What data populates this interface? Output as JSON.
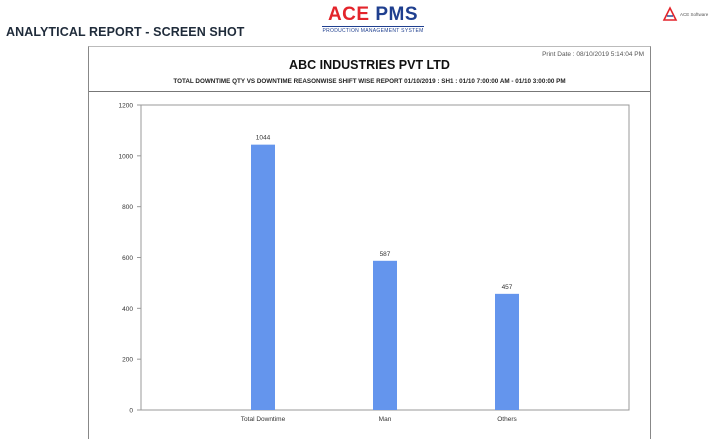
{
  "header": {
    "title": "ANALYTICAL REPORT - SCREEN SHOT",
    "logo_main_a": "ACE",
    "logo_main_b": "PMS",
    "logo_sub": "PRODUCTION MANAGEMENT SYSTEM",
    "brand_text": "ACE Software"
  },
  "report": {
    "print_date": "Print Date : 08/10/2019 5:14:04 PM",
    "company": "ABC INDUSTRIES PVT LTD",
    "title": "TOTAL DOWNTIME QTY VS DOWNTIME REASONWISE SHIFT WISE REPORT 01/10/2019 : SH1 : 01/10 7:00:00 AM - 01/10 3:00:00 PM"
  },
  "colors": {
    "bar": "#6495ed",
    "logo_red": "#e3242b",
    "logo_blue": "#1f3f8f"
  },
  "chart_data": {
    "type": "bar",
    "categories": [
      "Total Downtime",
      "Man",
      "Others"
    ],
    "values": [
      1044,
      587,
      457
    ],
    "ylim": [
      0,
      1200
    ],
    "yticks": [
      0,
      200,
      400,
      600,
      800,
      1000,
      1200
    ],
    "grid": false,
    "xlabel": "",
    "ylabel": ""
  }
}
